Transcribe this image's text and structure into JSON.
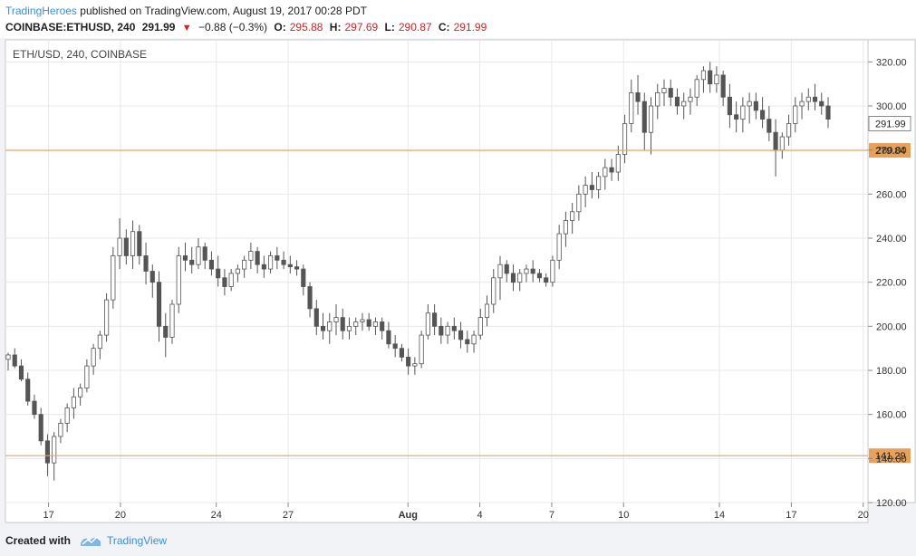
{
  "header": {
    "author": "TradingHeroes",
    "published_text": "published on TradingView.com, August 19, 2017 00:28 PDT",
    "symbol_line": "COINBASE:ETHUSD, 240",
    "last": "291.99",
    "change": "−0.88 (−0.3%)",
    "open_label": "O:",
    "open": "295.88",
    "high_label": "H:",
    "high": "297.69",
    "low_label": "L:",
    "low": "290.87",
    "close_label": "C:",
    "close": "291.99"
  },
  "footer": {
    "created_with": "Created with",
    "brand": "TradingView"
  },
  "colors": {
    "candle": "#555555",
    "hline": "#e2a566",
    "hline_label_bg": "#e8a15a",
    "grid": "#e8e8e8",
    "accent": "#3a8fd6"
  },
  "chart_data": {
    "type": "candlestick",
    "title": "ETH/USD, 240, COINBASE",
    "ylim": [
      120,
      330
    ],
    "y_ticks": [
      120,
      140,
      160,
      180,
      200,
      220,
      240,
      260,
      280,
      300,
      320
    ],
    "y_tick_labels": [
      "120.00",
      "140.00",
      "160.00",
      "180.00",
      "200.00",
      "220.00",
      "240.00",
      "260.00",
      "280.00",
      "300.00",
      "320.00"
    ],
    "x_ticks": [
      17,
      20,
      24,
      27,
      "Aug",
      4,
      7,
      10,
      14,
      17,
      20
    ],
    "x_tick_labels": [
      "17",
      "20",
      "24",
      "27",
      "Aug",
      "4",
      "7",
      "10",
      "14",
      "17",
      "20"
    ],
    "x_tick_positions_day": [
      17,
      20,
      24,
      27,
      32,
      35,
      38,
      41,
      45,
      48,
      51
    ],
    "x_range_day": [
      15.2,
      51.2
    ],
    "horizontal_lines": [
      {
        "value": 279.84,
        "label": "279.84"
      },
      {
        "value": 141.29,
        "label": "141.29"
      }
    ],
    "last_price": {
      "value": 291.99,
      "label": "291.99"
    },
    "grid": true,
    "candles": [
      [
        185,
        188,
        180,
        187
      ],
      [
        187,
        190,
        181,
        182
      ],
      [
        182,
        185,
        175,
        176
      ],
      [
        176,
        179,
        164,
        166
      ],
      [
        166,
        169,
        158,
        160
      ],
      [
        160,
        163,
        146,
        148
      ],
      [
        148,
        151,
        132,
        138
      ],
      [
        138,
        152,
        130,
        150
      ],
      [
        150,
        158,
        147,
        156
      ],
      [
        156,
        165,
        152,
        163
      ],
      [
        163,
        172,
        158,
        168
      ],
      [
        168,
        174,
        164,
        172
      ],
      [
        172,
        185,
        170,
        182
      ],
      [
        182,
        192,
        178,
        190
      ],
      [
        190,
        198,
        185,
        196
      ],
      [
        196,
        215,
        193,
        212
      ],
      [
        212,
        236,
        208,
        232
      ],
      [
        232,
        249,
        226,
        240
      ],
      [
        240,
        244,
        228,
        232
      ],
      [
        232,
        248,
        226,
        243
      ],
      [
        243,
        246,
        228,
        232
      ],
      [
        232,
        238,
        219,
        225
      ],
      [
        225,
        228,
        213,
        220
      ],
      [
        220,
        225,
        193,
        200
      ],
      [
        200,
        206,
        186,
        195
      ],
      [
        195,
        212,
        192,
        210
      ],
      [
        210,
        236,
        206,
        232
      ],
      [
        232,
        238,
        225,
        230
      ],
      [
        230,
        236,
        224,
        228
      ],
      [
        228,
        240,
        226,
        236
      ],
      [
        236,
        238,
        226,
        230
      ],
      [
        230,
        234,
        223,
        226
      ],
      [
        226,
        232,
        218,
        222
      ],
      [
        222,
        226,
        214,
        218
      ],
      [
        218,
        226,
        216,
        224
      ],
      [
        224,
        228,
        220,
        226
      ],
      [
        226,
        232,
        222,
        230
      ],
      [
        230,
        238,
        226,
        234
      ],
      [
        234,
        236,
        224,
        228
      ],
      [
        228,
        232,
        222,
        226
      ],
      [
        226,
        234,
        224,
        232
      ],
      [
        232,
        236,
        226,
        230
      ],
      [
        230,
        234,
        226,
        228
      ],
      [
        228,
        232,
        224,
        227
      ],
      [
        227,
        230,
        223,
        226
      ],
      [
        226,
        228,
        214,
        218
      ],
      [
        218,
        220,
        204,
        208
      ],
      [
        208,
        212,
        196,
        200
      ],
      [
        200,
        206,
        194,
        198
      ],
      [
        198,
        206,
        192,
        202
      ],
      [
        202,
        210,
        196,
        204
      ],
      [
        204,
        208,
        194,
        198
      ],
      [
        198,
        204,
        194,
        200
      ],
      [
        200,
        204,
        196,
        202
      ],
      [
        202,
        206,
        198,
        203
      ],
      [
        203,
        206,
        198,
        200
      ],
      [
        200,
        204,
        196,
        202
      ],
      [
        202,
        204,
        194,
        198
      ],
      [
        198,
        202,
        190,
        192
      ],
      [
        192,
        196,
        186,
        190
      ],
      [
        190,
        192,
        184,
        186
      ],
      [
        186,
        190,
        178,
        182
      ],
      [
        182,
        186,
        178,
        183
      ],
      [
        183,
        198,
        181,
        196
      ],
      [
        196,
        210,
        194,
        206
      ],
      [
        206,
        210,
        196,
        200
      ],
      [
        200,
        204,
        192,
        196
      ],
      [
        196,
        202,
        192,
        200
      ],
      [
        200,
        204,
        194,
        198
      ],
      [
        198,
        202,
        190,
        194
      ],
      [
        194,
        198,
        188,
        192
      ],
      [
        192,
        198,
        188,
        196
      ],
      [
        196,
        208,
        194,
        204
      ],
      [
        204,
        214,
        200,
        210
      ],
      [
        210,
        226,
        206,
        222
      ],
      [
        222,
        232,
        212,
        228
      ],
      [
        228,
        230,
        220,
        224
      ],
      [
        224,
        228,
        216,
        220
      ],
      [
        220,
        226,
        216,
        224
      ],
      [
        224,
        228,
        220,
        226
      ],
      [
        226,
        230,
        220,
        224
      ],
      [
        224,
        226,
        220,
        222
      ],
      [
        222,
        224,
        218,
        220
      ],
      [
        220,
        232,
        218,
        230
      ],
      [
        230,
        246,
        226,
        242
      ],
      [
        242,
        252,
        236,
        248
      ],
      [
        248,
        256,
        242,
        252
      ],
      [
        252,
        264,
        248,
        260
      ],
      [
        260,
        268,
        254,
        264
      ],
      [
        264,
        270,
        258,
        262
      ],
      [
        262,
        270,
        258,
        268
      ],
      [
        268,
        276,
        262,
        272
      ],
      [
        272,
        276,
        266,
        270
      ],
      [
        270,
        282,
        266,
        278
      ],
      [
        278,
        296,
        274,
        292
      ],
      [
        292,
        312,
        288,
        306
      ],
      [
        306,
        314,
        296,
        302
      ],
      [
        302,
        306,
        280,
        288
      ],
      [
        288,
        304,
        278,
        300
      ],
      [
        300,
        310,
        294,
        306
      ],
      [
        306,
        312,
        300,
        308
      ],
      [
        308,
        312,
        300,
        304
      ],
      [
        304,
        308,
        296,
        300
      ],
      [
        300,
        306,
        294,
        302
      ],
      [
        302,
        308,
        296,
        304
      ],
      [
        304,
        314,
        300,
        312
      ],
      [
        312,
        318,
        306,
        316
      ],
      [
        316,
        320,
        306,
        310
      ],
      [
        310,
        318,
        306,
        314
      ],
      [
        314,
        316,
        300,
        304
      ],
      [
        304,
        310,
        290,
        296
      ],
      [
        296,
        302,
        288,
        294
      ],
      [
        294,
        304,
        288,
        300
      ],
      [
        300,
        306,
        292,
        302
      ],
      [
        302,
        306,
        294,
        298
      ],
      [
        298,
        304,
        290,
        294
      ],
      [
        294,
        300,
        284,
        288
      ],
      [
        288,
        294,
        268,
        280
      ],
      [
        280,
        288,
        276,
        286
      ],
      [
        286,
        296,
        282,
        292
      ],
      [
        292,
        304,
        288,
        300
      ],
      [
        300,
        306,
        294,
        302
      ],
      [
        302,
        308,
        298,
        304
      ],
      [
        304,
        310,
        298,
        302
      ],
      [
        302,
        306,
        296,
        300
      ],
      [
        300,
        304,
        290,
        294
      ]
    ]
  }
}
